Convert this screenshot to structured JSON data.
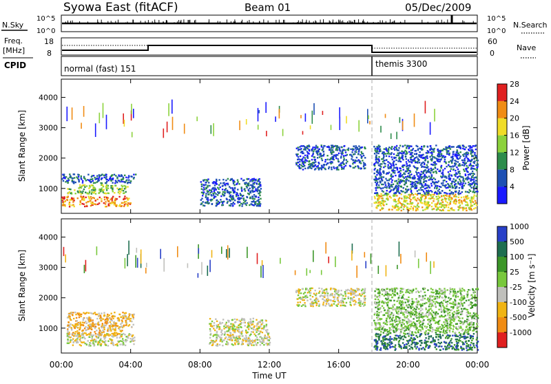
{
  "header": {
    "station": "Syowa East (fitACF)",
    "beam": "Beam 01",
    "date": "05/Dec/2009"
  },
  "top_panels": {
    "nsky_label": "N.Sky",
    "nsky_ticks": [
      "10^5",
      "10^0"
    ],
    "nsearch_label": "N.Search",
    "nsearch_ticks": [
      "10^5",
      "10^0"
    ],
    "freq_label": "Freq.",
    "freq_unit": "[MHz]",
    "freq_ticks": [
      "18",
      "8"
    ],
    "nave_label": "Nave",
    "nave_ticks": [
      "60",
      "0"
    ],
    "cpid_label": "CPID",
    "cpid_segments": [
      {
        "label": "normal (fast) 151",
        "start_h": 0,
        "end_h": 18
      },
      {
        "label": "themis 3300",
        "start_h": 18,
        "end_h": 24
      }
    ]
  },
  "chart_data": [
    {
      "type": "heatmap",
      "title": "Power",
      "xlabel": "",
      "ylabel": "Slant Range [km]",
      "xlim": [
        0,
        24
      ],
      "ylim": [
        180,
        4600
      ],
      "yticks": [
        "1000",
        "2000",
        "3000",
        "4000"
      ],
      "colorbar": {
        "label": "Power [dB]",
        "ticks": [
          "4",
          "8",
          "12",
          "16",
          "20",
          "24",
          "28"
        ],
        "colors": [
          "#1a1aff",
          "#1e50b4",
          "#2d8c4b",
          "#8cd23c",
          "#f0dc28",
          "#f08c14",
          "#e02020"
        ]
      },
      "regions": [
        {
          "x0": 0.0,
          "x1": 4.3,
          "y0": 1150,
          "y1": 1450,
          "level": 1
        },
        {
          "x0": 0.3,
          "x1": 3.8,
          "y0": 800,
          "y1": 1100,
          "level": 3
        },
        {
          "x0": 0.0,
          "x1": 4.0,
          "y0": 380,
          "y1": 720,
          "level": 5
        },
        {
          "x0": 8.0,
          "x1": 11.5,
          "y0": 400,
          "y1": 1300,
          "level": 1
        },
        {
          "x0": 13.5,
          "x1": 17.5,
          "y0": 1600,
          "y1": 2400,
          "level": 1
        },
        {
          "x0": 18.0,
          "x1": 24.0,
          "y0": 250,
          "y1": 800,
          "level": 4
        },
        {
          "x0": 18.0,
          "x1": 24.0,
          "y0": 800,
          "y1": 2400,
          "level": 1
        }
      ]
    },
    {
      "type": "heatmap",
      "title": "Velocity",
      "xlabel": "Time UT",
      "ylabel": "Slant Range [km]",
      "xlim": [
        0,
        24
      ],
      "ylim": [
        180,
        4600
      ],
      "yticks": [
        "1000",
        "2000",
        "3000",
        "4000"
      ],
      "xticks": [
        "00:00",
        "04:00",
        "08:00",
        "12:00",
        "16:00",
        "20:00",
        "00:00"
      ],
      "colorbar": {
        "label": "Velocity [m s⁻¹]",
        "ticks": [
          "1000",
          "500",
          "100",
          "25",
          "-25",
          "-100",
          "-500",
          "-1000"
        ],
        "colors": [
          "#2840c8",
          "#1e6e50",
          "#3c9628",
          "#78c83c",
          "#c0c0bc",
          "#f0b414",
          "#f08c14",
          "#e02020"
        ]
      },
      "regions": [
        {
          "x0": 0.3,
          "x1": 4.2,
          "y0": 1000,
          "y1": 1500,
          "level": 5
        },
        {
          "x0": 0.3,
          "x1": 4.2,
          "y0": 400,
          "y1": 800,
          "level": 4
        },
        {
          "x0": 0.3,
          "x1": 3.5,
          "y0": 700,
          "y1": 1100,
          "level": 5
        },
        {
          "x0": 8.5,
          "x1": 12.0,
          "y0": 400,
          "y1": 1300,
          "level": 4
        },
        {
          "x0": 13.5,
          "x1": 17.5,
          "y0": 1700,
          "y1": 2300,
          "level": 4
        },
        {
          "x0": 18.0,
          "x1": 24.0,
          "y0": 250,
          "y1": 800,
          "level": 1
        },
        {
          "x0": 18.0,
          "x1": 24.0,
          "y0": 800,
          "y1": 2300,
          "level": 3
        }
      ]
    }
  ]
}
